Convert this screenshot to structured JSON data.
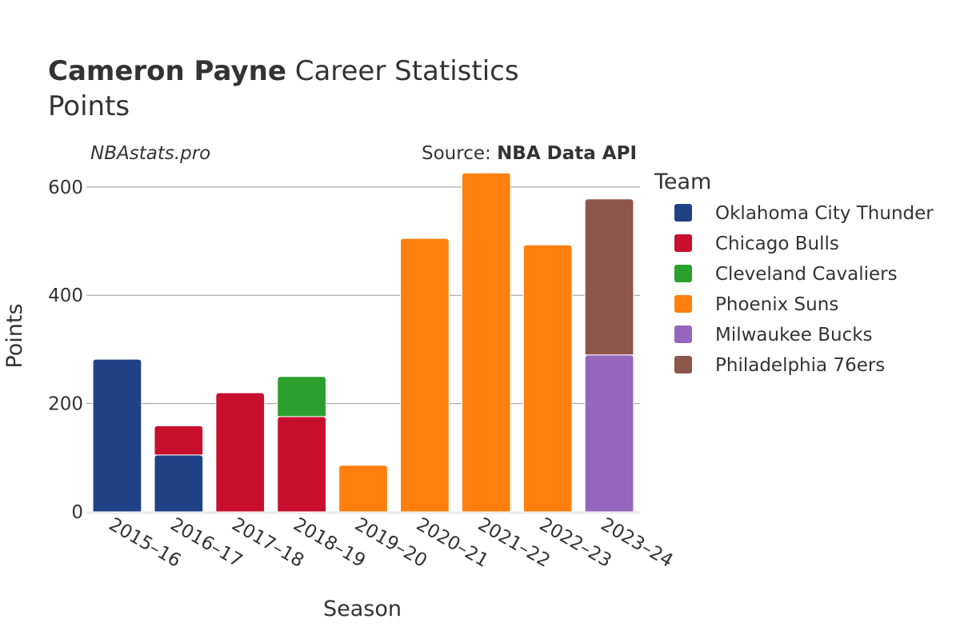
{
  "title": {
    "player": "Cameron Payne",
    "suffix": " Career Statistics",
    "subtitle": "Points"
  },
  "watermark": "NBAstats.pro",
  "source": {
    "label": "Source: ",
    "value": "NBA Data API"
  },
  "legend_title": "Team",
  "chart_data": {
    "type": "bar",
    "stacked": true,
    "xlabel": "Season",
    "ylabel": "Points",
    "ylim": [
      0,
      650
    ],
    "yticks": [
      0,
      200,
      400,
      600
    ],
    "grid": true,
    "legend_position": "right",
    "categories": [
      "2015–16",
      "2016–17",
      "2017–18",
      "2018–19",
      "2019–20",
      "2020–21",
      "2021–22",
      "2022–23",
      "2023–24"
    ],
    "series": [
      {
        "name": "Oklahoma City Thunder",
        "color": "#1f4287",
        "values": [
          282,
          105,
          0,
          0,
          0,
          0,
          0,
          0,
          0
        ]
      },
      {
        "name": "Chicago Bulls",
        "color": "#c8102e",
        "values": [
          0,
          54,
          220,
          176,
          0,
          0,
          0,
          0,
          0
        ]
      },
      {
        "name": "Cleveland Cavaliers",
        "color": "#2ca02c",
        "values": [
          0,
          0,
          0,
          74,
          0,
          0,
          0,
          0,
          0
        ]
      },
      {
        "name": "Phoenix Suns",
        "color": "#ff7f0e",
        "values": [
          0,
          0,
          0,
          0,
          86,
          505,
          626,
          493,
          0
        ]
      },
      {
        "name": "Milwaukee Bucks",
        "color": "#9467bd",
        "values": [
          0,
          0,
          0,
          0,
          0,
          0,
          0,
          0,
          290
        ]
      },
      {
        "name": "Philadelphia 76ers",
        "color": "#8c564b",
        "values": [
          0,
          0,
          0,
          0,
          0,
          0,
          0,
          0,
          288
        ]
      }
    ]
  }
}
